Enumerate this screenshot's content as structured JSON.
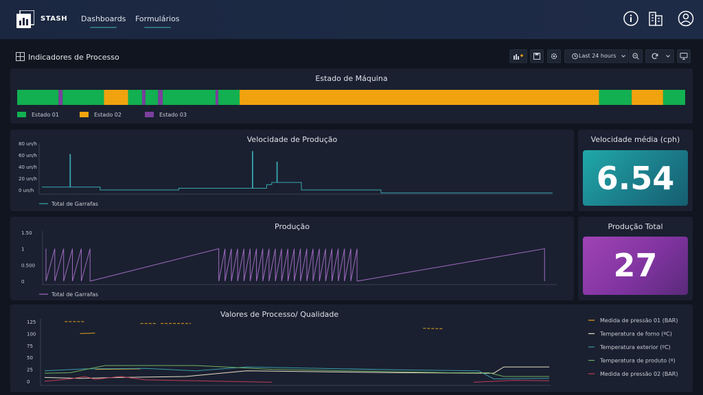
{
  "app": {
    "brand": "STASH"
  },
  "nav": {
    "dashboards": "Dashboards",
    "forms": "Formulários"
  },
  "icons": {
    "info": "info-icon",
    "buildings": "buildings-icon",
    "user": "user-icon",
    "dashboard": "dashboard-grid-icon"
  },
  "dashboard": {
    "title": "Indicadores de Processo"
  },
  "toolbar": {
    "time_range": "Last 24 hours"
  },
  "colors": {
    "estado01": "#12b050",
    "estado02": "#f0a30f",
    "estado03": "#7b3f9e",
    "velocidade_line": "#3aa6b1",
    "producao_line": "#a06bc0",
    "pressao01": "#e8a51a",
    "forno": "#e8e1c6",
    "exterior": "#3b9aa8",
    "produto": "#6fb060",
    "pressao02": "#c23b56",
    "stat_teal": "#1f8f98",
    "stat_purple": "#8a3aa8"
  },
  "estado": {
    "title": "Estado de Máquina",
    "legend": [
      "Estado 01",
      "Estado 02",
      "Estado 03"
    ],
    "segments": [
      {
        "state": 1,
        "start": 0.0,
        "end": 0.062
      },
      {
        "state": 3,
        "start": 0.062,
        "end": 0.068
      },
      {
        "state": 1,
        "start": 0.068,
        "end": 0.13
      },
      {
        "state": 2,
        "start": 0.13,
        "end": 0.166
      },
      {
        "state": 1,
        "start": 0.166,
        "end": 0.187
      },
      {
        "state": 3,
        "start": 0.187,
        "end": 0.192
      },
      {
        "state": 1,
        "start": 0.192,
        "end": 0.211
      },
      {
        "state": 3,
        "start": 0.211,
        "end": 0.218
      },
      {
        "state": 1,
        "start": 0.218,
        "end": 0.297
      },
      {
        "state": 3,
        "start": 0.297,
        "end": 0.301
      },
      {
        "state": 1,
        "start": 0.301,
        "end": 0.333
      },
      {
        "state": 2,
        "start": 0.333,
        "end": 0.871
      },
      {
        "state": 1,
        "start": 0.871,
        "end": 0.92
      },
      {
        "state": 2,
        "start": 0.92,
        "end": 0.967
      },
      {
        "state": 1,
        "start": 0.967,
        "end": 1.0
      }
    ]
  },
  "velocidade": {
    "title": "Velocidade de Produção",
    "legend": "Total de Garrafas",
    "y_ticks": [
      "80 un/h",
      "60 un/h",
      "40 un/h",
      "20 un/h",
      "0 un/h"
    ],
    "ylim": [
      0,
      80
    ]
  },
  "producao": {
    "title": "Produção",
    "legend": "Total de Garrafas",
    "y_ticks": [
      "1.50",
      "1",
      "0.500",
      "0"
    ],
    "ylim": [
      0,
      1.5
    ]
  },
  "velocidade_media": {
    "title": "Velocidade média (cph)",
    "value": "6.54"
  },
  "producao_total": {
    "title": "Produção Total",
    "value": "27"
  },
  "processo": {
    "title": "Valores de Processo/ Qualidade",
    "y_ticks": [
      "125",
      "100",
      "75",
      "50",
      "25",
      "0"
    ],
    "ylim": [
      0,
      125
    ],
    "legend": [
      "Medida de pressão 01 (BAR)",
      "Temperatura de forno (ºC)",
      "Temperatura exterior (ºC)",
      "Temperatura de produto (º)",
      "Medida de pressão 02 (BAR)"
    ]
  }
}
